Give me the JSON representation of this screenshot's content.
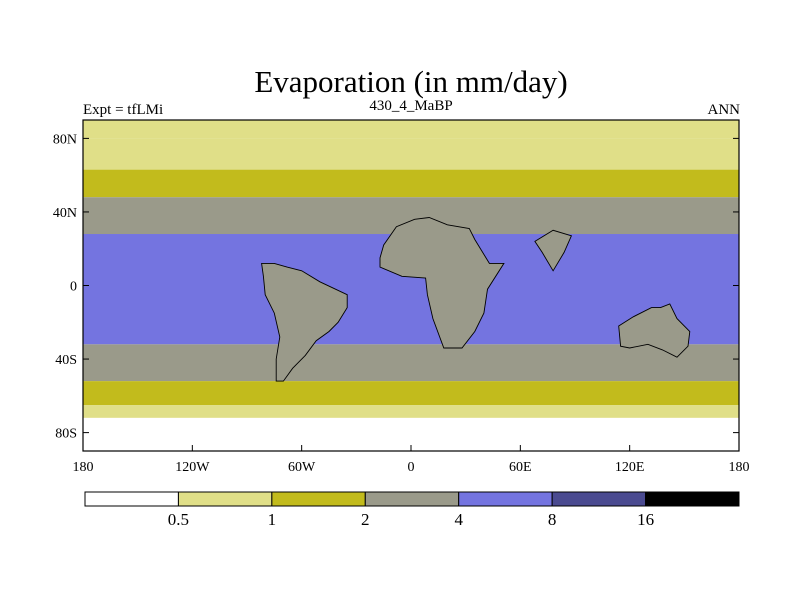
{
  "chart_data": {
    "type": "heatmap",
    "title": "Evaporation (in mm/day)",
    "subtitle_left": "Expt = tfLMi",
    "subtitle_center": "430_4_MaBP",
    "subtitle_right": "ANN",
    "x_ticks": [
      {
        "value": -180,
        "label": "180"
      },
      {
        "value": -120,
        "label": "120W"
      },
      {
        "value": -60,
        "label": "60W"
      },
      {
        "value": 0,
        "label": "0"
      },
      {
        "value": 60,
        "label": "60E"
      },
      {
        "value": 120,
        "label": "120E"
      },
      {
        "value": 180,
        "label": "180"
      }
    ],
    "y_ticks": [
      {
        "value": 80,
        "label": "80N"
      },
      {
        "value": 40,
        "label": "40N"
      },
      {
        "value": 0,
        "label": "0"
      },
      {
        "value": -40,
        "label": "40S"
      },
      {
        "value": -80,
        "label": "80S"
      }
    ],
    "xlim": [
      -180,
      180
    ],
    "ylim": [
      -90,
      90
    ],
    "colorbar": {
      "levels": [
        "0.5",
        "1",
        "2",
        "4",
        "8",
        "16"
      ],
      "colors": [
        "#ffffff",
        "#e0df88",
        "#c2bb1c",
        "#9a9a8a",
        "#7474e0",
        "#4a4a90",
        "#000000"
      ]
    },
    "zonal_bands": [
      {
        "lat_from": 90,
        "lat_to": 80,
        "class": 0.5,
        "label": "0.5-1 mm/day"
      },
      {
        "lat_from": 80,
        "lat_to": 63,
        "class": 0.5,
        "label": "0.5-1 mm/day"
      },
      {
        "lat_from": 63,
        "lat_to": 48,
        "class": 1,
        "label": "1-2 mm/day"
      },
      {
        "lat_from": 48,
        "lat_to": 28,
        "class": 2,
        "label": "2-4 mm/day"
      },
      {
        "lat_from": 28,
        "lat_to": -32,
        "class": 4,
        "label": "4-8 mm/day"
      },
      {
        "lat_from": -32,
        "lat_to": -52,
        "class": 2,
        "label": "2-4 mm/day"
      },
      {
        "lat_from": -52,
        "lat_to": -65,
        "class": 1,
        "label": "1-2 mm/day"
      },
      {
        "lat_from": -65,
        "lat_to": -72,
        "class": 0.5,
        "label": "0.5-1 mm/day"
      },
      {
        "lat_from": -72,
        "lat_to": -90,
        "class": 0,
        "label": "<0.5 mm/day"
      }
    ],
    "land_regions": [
      {
        "name": "south-america",
        "class": 2,
        "points": [
          [
            -82,
            12
          ],
          [
            -75,
            12
          ],
          [
            -68,
            10
          ],
          [
            -60,
            8
          ],
          [
            -50,
            2
          ],
          [
            -35,
            -5
          ],
          [
            -35,
            -12
          ],
          [
            -40,
            -20
          ],
          [
            -45,
            -25
          ],
          [
            -52,
            -30
          ],
          [
            -58,
            -38
          ],
          [
            -65,
            -45
          ],
          [
            -70,
            -52
          ],
          [
            -74,
            -52
          ],
          [
            -74,
            -40
          ],
          [
            -72,
            -28
          ],
          [
            -75,
            -15
          ],
          [
            -80,
            -5
          ],
          [
            -81,
            5
          ]
        ]
      },
      {
        "name": "africa",
        "class": 2,
        "points": [
          [
            -17,
            15
          ],
          [
            -15,
            22
          ],
          [
            -8,
            32
          ],
          [
            2,
            36
          ],
          [
            10,
            37
          ],
          [
            20,
            33
          ],
          [
            32,
            31
          ],
          [
            35,
            25
          ],
          [
            43,
            12
          ],
          [
            51,
            12
          ],
          [
            42,
            -2
          ],
          [
            40,
            -15
          ],
          [
            35,
            -25
          ],
          [
            28,
            -34
          ],
          [
            18,
            -34
          ],
          [
            12,
            -18
          ],
          [
            9,
            -5
          ],
          [
            8,
            4
          ],
          [
            -5,
            5
          ],
          [
            -17,
            10
          ]
        ]
      },
      {
        "name": "india",
        "class": 2,
        "points": [
          [
            68,
            24
          ],
          [
            78,
            30
          ],
          [
            88,
            27
          ],
          [
            84,
            18
          ],
          [
            78,
            8
          ],
          [
            72,
            18
          ]
        ]
      },
      {
        "name": "australia",
        "class": 2,
        "points": [
          [
            114,
            -22
          ],
          [
            122,
            -17
          ],
          [
            132,
            -12
          ],
          [
            137,
            -12
          ],
          [
            142,
            -10
          ],
          [
            146,
            -18
          ],
          [
            153,
            -25
          ],
          [
            152,
            -33
          ],
          [
            146,
            -39
          ],
          [
            138,
            -35
          ],
          [
            130,
            -32
          ],
          [
            120,
            -34
          ],
          [
            115,
            -33
          ]
        ]
      }
    ]
  }
}
